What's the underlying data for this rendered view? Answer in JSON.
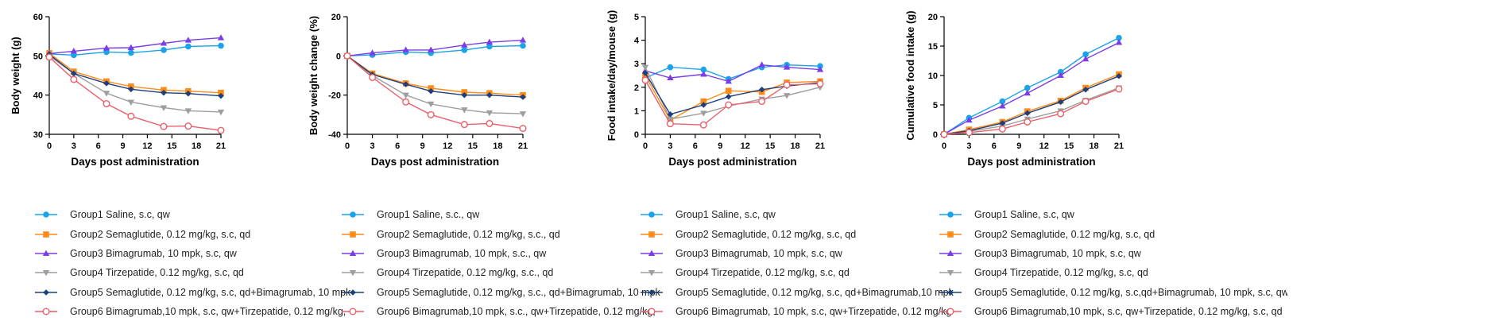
{
  "colors": {
    "g1": "#1aa3e8",
    "g2": "#ff8c1a",
    "g3": "#7a3ee6",
    "g4": "#9e9e9e",
    "g5": "#1f3f7a",
    "g6": "#e8616c"
  },
  "chart_data": [
    {
      "type": "line",
      "xlabel": "Days post administration",
      "ylabel": "Body weight (g)",
      "xlim": [
        0,
        21
      ],
      "ylim": [
        30,
        60
      ],
      "xticks": [
        "0",
        "3",
        "6",
        "9",
        "12",
        "15",
        "18",
        "21"
      ],
      "yticks": [
        "30",
        "40",
        "50",
        "60"
      ],
      "x": [
        0,
        3,
        7,
        10,
        14,
        17,
        21
      ],
      "series": [
        {
          "name": "Group1 Saline, s.c, qw",
          "values": [
            50.5,
            50.2,
            51.0,
            50.8,
            51.5,
            52.4,
            52.6
          ]
        },
        {
          "name": "Group2 Semaglutide, 0.12 mg/kg, s.c, qd",
          "values": [
            50.7,
            46.0,
            43.5,
            42.2,
            41.3,
            41.0,
            40.6
          ]
        },
        {
          "name": "Group3 Bimagrumab, 10 mpk, s.c, qw",
          "values": [
            50.6,
            51.2,
            52.0,
            52.1,
            53.2,
            54.0,
            54.6
          ]
        },
        {
          "name": "Group4 Tirzepatide, 0.12 mg/kg, s.c, qd",
          "values": [
            50.0,
            45.5,
            40.5,
            38.2,
            36.8,
            36.0,
            35.7
          ]
        },
        {
          "name": "Group5 Semaglutide, 0.12 mg/kg, s.c, qd+Bimagrumab, 10 mpk",
          "values": [
            50.4,
            45.5,
            43.0,
            41.5,
            40.6,
            40.4,
            39.8
          ]
        },
        {
          "name": "Group6 Bimagrumab,10 mpk, s.c, qw+Tirzepatide, 0.12 mg/kg,",
          "values": [
            49.7,
            44.0,
            37.8,
            34.6,
            32.0,
            32.1,
            31.0
          ]
        }
      ]
    },
    {
      "type": "line",
      "xlabel": "Days post administration",
      "ylabel": "Body weight change (%)",
      "xlim": [
        0,
        21
      ],
      "ylim": [
        -40,
        20
      ],
      "xticks": [
        "0",
        "3",
        "6",
        "9",
        "12",
        "15",
        "18",
        "21"
      ],
      "yticks": [
        "-40",
        "-20",
        "0",
        "20"
      ],
      "x": [
        0,
        3,
        7,
        10,
        14,
        17,
        21
      ],
      "series": [
        {
          "name": "Group1 Saline, s.c., qw",
          "values": [
            0,
            0.5,
            2.0,
            1.5,
            3.0,
            4.8,
            5.2
          ]
        },
        {
          "name": "Group2 Semaglutide, 0.12 mg/kg, s.c., qd",
          "values": [
            0,
            -9.0,
            -14.0,
            -16.5,
            -18.5,
            -19.0,
            -20.0
          ]
        },
        {
          "name": "Group3 Bimagrumab, 10 mpk, s.c., qw",
          "values": [
            0,
            1.5,
            3.0,
            3.0,
            5.5,
            7.0,
            8.0
          ]
        },
        {
          "name": "Group4 Tirzepatide, 0.12 mg/kg, s.c., qd",
          "values": [
            0,
            -10.0,
            -20.0,
            -24.5,
            -27.5,
            -29.0,
            -29.5
          ]
        },
        {
          "name": "Group5 Semaglutide, 0.12 mg/kg, s.c., qd+Bimagrumab, 10 mpk",
          "values": [
            0,
            -9.5,
            -14.5,
            -18.0,
            -20.0,
            -20.0,
            -21.0
          ]
        },
        {
          "name": "Group6 Bimagrumab,10 mpk, s.c., qw+Tirzepatide, 0.12 mg/kg,",
          "values": [
            0,
            -11.0,
            -23.5,
            -30.0,
            -35.0,
            -34.5,
            -37.0
          ]
        }
      ]
    },
    {
      "type": "line",
      "xlabel": "Days post administration",
      "ylabel": "Food intake/day/mouse (g)",
      "xlim": [
        0,
        21
      ],
      "ylim": [
        0,
        5
      ],
      "xticks": [
        "0",
        "3",
        "6",
        "9",
        "12",
        "15",
        "18",
        "21"
      ],
      "yticks": [
        "0",
        "1",
        "2",
        "3",
        "4",
        "5"
      ],
      "x": [
        0,
        3,
        7,
        10,
        14,
        17,
        21
      ],
      "series": [
        {
          "name": "Group1 Saline, s.c, qw",
          "values": [
            2.4,
            2.85,
            2.75,
            2.35,
            2.85,
            2.95,
            2.9
          ]
        },
        {
          "name": "Group2 Semaglutide, 0.12 mg/kg, s.c, qd",
          "values": [
            2.5,
            0.6,
            1.4,
            1.85,
            1.8,
            2.2,
            2.25
          ]
        },
        {
          "name": "Group3 Bimagrumab, 10 mpk, s.c, qw",
          "values": [
            2.7,
            2.4,
            2.55,
            2.25,
            2.95,
            2.85,
            2.75
          ]
        },
        {
          "name": "Group4 Tirzepatide, 0.12 mg/kg, s.c, qd",
          "values": [
            2.85,
            0.65,
            0.9,
            1.2,
            1.5,
            1.65,
            2.0
          ]
        },
        {
          "name": "Group5 Semaglutide, 0.12 mg/kg, s.c, qd+Bimagrumab,10 mpk",
          "values": [
            2.6,
            0.85,
            1.25,
            1.6,
            1.9,
            2.05,
            2.2
          ]
        },
        {
          "name": "Group6 Bimagrumab, 10 mpk, s.c, qw+Tirzepatide, 0.12 mg/kg",
          "values": [
            2.3,
            0.45,
            0.4,
            1.25,
            1.4,
            2.1,
            2.15
          ]
        }
      ]
    },
    {
      "type": "line",
      "xlabel": "Days post administration",
      "ylabel": "Cumulative food intake (g)",
      "xlim": [
        0,
        21
      ],
      "ylim": [
        0,
        20
      ],
      "xticks": [
        "0",
        "3",
        "6",
        "9",
        "12",
        "15",
        "18",
        "21"
      ],
      "yticks": [
        "0",
        "5",
        "10",
        "15",
        "20"
      ],
      "x": [
        0,
        3,
        7,
        10,
        14,
        17,
        21
      ],
      "series": [
        {
          "name": "Group1 Saline, s.c, qw",
          "values": [
            0,
            2.8,
            5.6,
            7.9,
            10.6,
            13.6,
            16.4
          ]
        },
        {
          "name": "Group2 Semaglutide, 0.12 mg/kg, s.c, qd",
          "values": [
            0,
            0.8,
            2.1,
            3.9,
            5.7,
            7.9,
            10.2
          ]
        },
        {
          "name": "Group3 Bimagrumab, 10 mpk, s.c, qw",
          "values": [
            0,
            2.4,
            4.8,
            7.0,
            10.0,
            12.8,
            15.6
          ]
        },
        {
          "name": "Group4 Tirzepatide, 0.12 mg/kg, s.c, qd",
          "values": [
            0,
            0.5,
            1.4,
            2.6,
            4.0,
            5.8,
            7.9
          ]
        },
        {
          "name": "Group5 Semaglutide, 0.12 mg/kg, s.c,qd+Bimagrumab, 10 mpk, s.c, qw",
          "values": [
            0,
            0.6,
            1.9,
            3.6,
            5.5,
            7.6,
            9.9
          ]
        },
        {
          "name": "Group6 Bimagrumab,10 mpk, s.c, qw+Tirzepatide, 0.12 mg/kg, s.c, qd",
          "values": [
            0,
            0.3,
            0.9,
            2.1,
            3.5,
            5.6,
            7.7
          ]
        }
      ]
    }
  ]
}
